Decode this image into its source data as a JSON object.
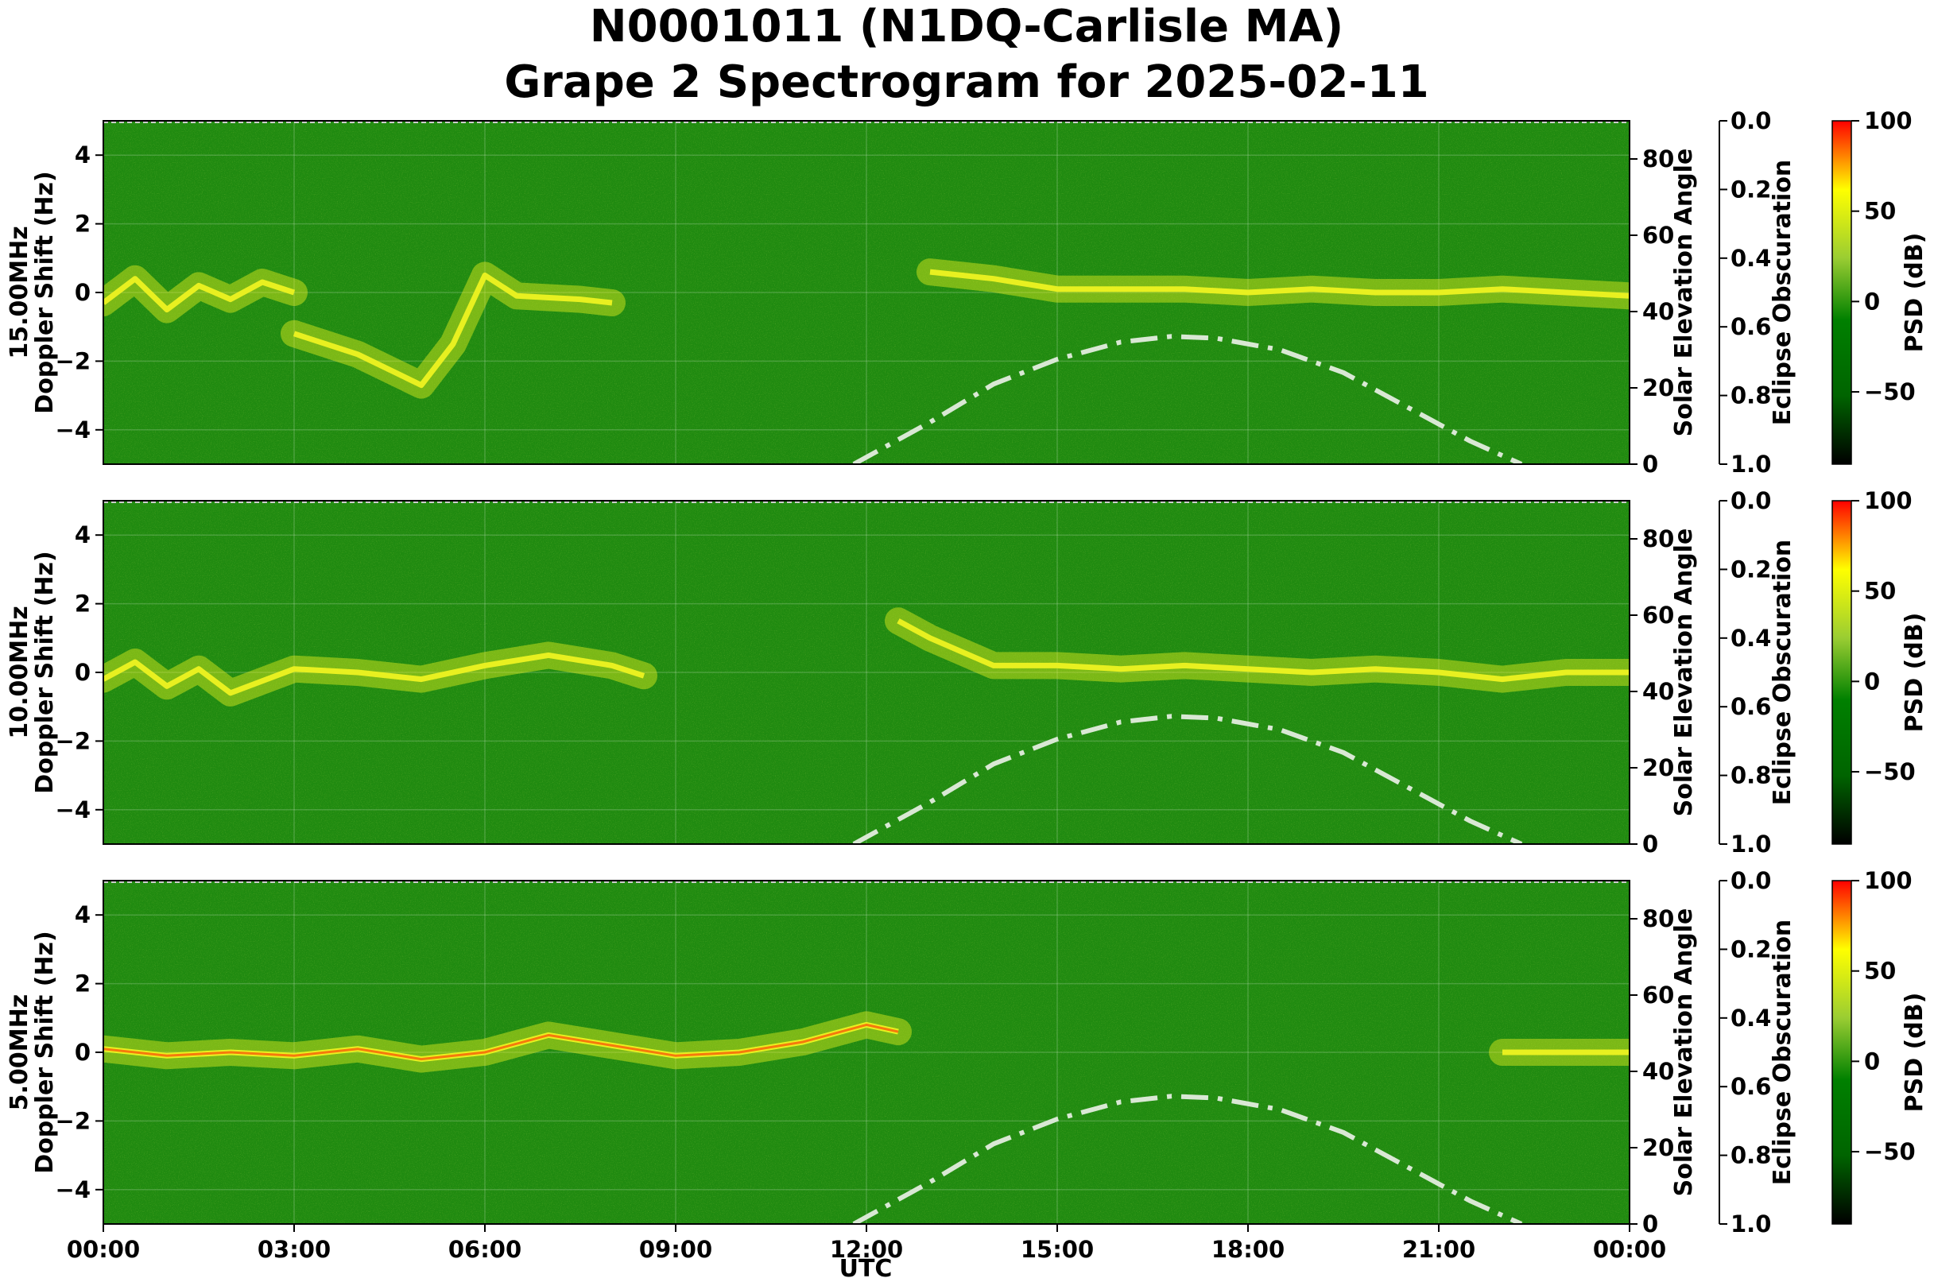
{
  "figure": {
    "title_line1": "N0001011 (N1DQ-Carlisle MA)",
    "title_line2": "Grape 2 Spectrogram for 2025-02-11",
    "xlabel": "UTC",
    "x_tick_labels": [
      "00:00",
      "03:00",
      "06:00",
      "09:00",
      "12:00",
      "15:00",
      "18:00",
      "21:00",
      "00:00"
    ]
  },
  "colors": {
    "background_green": "#1f8a10",
    "signal_yellow": "#e8f020",
    "peak_red": "#ff2a00",
    "elevation_curve": "#d9e8d4",
    "colorbar_stops": [
      "#000000",
      "#006400",
      "#008000",
      "#9acd32",
      "#ffff00",
      "#ff0000"
    ]
  },
  "chart_data": [
    {
      "type": "heatmap",
      "frequency_label": "15.00MHz",
      "ylabel": "Doppler Shift (Hz)",
      "ylim": [
        -5,
        5
      ],
      "y_ticks": [
        4,
        2,
        0,
        -2,
        -4
      ],
      "x_range_hours": [
        0,
        24
      ],
      "right_axis1": {
        "label": "Solar Elevation Angle",
        "ylim": [
          0,
          90
        ],
        "ticks": [
          0,
          20,
          40,
          60,
          80
        ]
      },
      "right_axis2": {
        "label": "Eclipse Obscuration",
        "ylim": [
          1.0,
          0.0
        ],
        "tick_labels": [
          "0.0",
          "0.2",
          "0.4",
          "0.6",
          "0.8",
          "1.0"
        ]
      },
      "colorbar": {
        "label": "PSD (dB)",
        "range": [
          -90,
          100
        ],
        "ticks": [
          100,
          50,
          0,
          -50
        ]
      },
      "solar_elevation": {
        "hours": [
          11.8,
          13,
          14,
          15,
          16,
          16.8,
          17.5,
          18.5,
          19.5,
          20.5,
          21.5,
          22.3
        ],
        "values": [
          0,
          11,
          21,
          27.5,
          32,
          33.5,
          33,
          30,
          24,
          15,
          6,
          0
        ]
      },
      "doppler_trace": [
        {
          "hours": [
            0,
            0.5,
            1,
            1.5,
            2,
            2.5,
            3
          ],
          "values": [
            -0.3,
            0.4,
            -0.5,
            0.2,
            -0.2,
            0.3,
            0.0
          ]
        },
        {
          "hours": [
            3,
            4,
            5,
            5.5,
            6,
            6.5,
            7.5,
            8
          ],
          "values": [
            -1.2,
            -1.8,
            -2.7,
            -1.5,
            0.5,
            -0.1,
            -0.2,
            -0.3
          ]
        },
        {
          "hours": [
            13,
            14,
            15,
            16,
            17,
            18,
            19,
            20,
            21,
            22,
            23,
            24
          ],
          "values": [
            0.6,
            0.4,
            0.1,
            0.1,
            0.1,
            0.0,
            0.1,
            0.0,
            0.0,
            0.1,
            0.0,
            -0.1
          ]
        }
      ]
    },
    {
      "type": "heatmap",
      "frequency_label": "10.00MHz",
      "ylabel": "Doppler Shift (Hz)",
      "ylim": [
        -5,
        5
      ],
      "y_ticks": [
        4,
        2,
        0,
        -2,
        -4
      ],
      "x_range_hours": [
        0,
        24
      ],
      "right_axis1": {
        "label": "Solar Elevation Angle",
        "ylim": [
          0,
          90
        ],
        "ticks": [
          0,
          20,
          40,
          60,
          80
        ]
      },
      "right_axis2": {
        "label": "Eclipse Obscuration",
        "ylim": [
          1.0,
          0.0
        ],
        "tick_labels": [
          "0.0",
          "0.2",
          "0.4",
          "0.6",
          "0.8",
          "1.0"
        ]
      },
      "colorbar": {
        "label": "PSD (dB)",
        "range": [
          -90,
          100
        ],
        "ticks": [
          100,
          50,
          0,
          -50
        ]
      },
      "solar_elevation": {
        "hours": [
          11.8,
          13,
          14,
          15,
          16,
          16.8,
          17.5,
          18.5,
          19.5,
          20.5,
          21.5,
          22.3
        ],
        "values": [
          0,
          11,
          21,
          27.5,
          32,
          33.5,
          33,
          30,
          24,
          15,
          6,
          0
        ]
      },
      "doppler_trace": [
        {
          "hours": [
            0,
            0.5,
            1,
            1.5,
            2,
            3,
            4,
            5,
            6,
            7,
            8,
            8.5
          ],
          "values": [
            -0.2,
            0.3,
            -0.4,
            0.1,
            -0.6,
            0.1,
            0.0,
            -0.2,
            0.2,
            0.5,
            0.2,
            -0.1
          ]
        },
        {
          "hours": [
            12.5,
            13,
            14,
            15,
            16,
            17,
            18,
            19,
            20,
            21,
            22,
            23,
            24
          ],
          "values": [
            1.5,
            1.0,
            0.2,
            0.2,
            0.1,
            0.2,
            0.1,
            0.0,
            0.1,
            0.0,
            -0.2,
            0.0,
            0.0
          ]
        }
      ]
    },
    {
      "type": "heatmap",
      "frequency_label": "5.00MHz",
      "ylabel": "Doppler Shift (Hz)",
      "ylim": [
        -5,
        5
      ],
      "y_ticks": [
        4,
        2,
        0,
        -2,
        -4
      ],
      "x_range_hours": [
        0,
        24
      ],
      "right_axis1": {
        "label": "Solar Elevation Angle",
        "ylim": [
          0,
          90
        ],
        "ticks": [
          0,
          20,
          40,
          60,
          80
        ]
      },
      "right_axis2": {
        "label": "Eclipse Obscuration",
        "ylim": [
          1.0,
          0.0
        ],
        "tick_labels": [
          "0.0",
          "0.2",
          "0.4",
          "0.6",
          "0.8",
          "1.0"
        ]
      },
      "colorbar": {
        "label": "PSD (dB)",
        "range": [
          -90,
          100
        ],
        "ticks": [
          100,
          50,
          0,
          -50
        ]
      },
      "solar_elevation": {
        "hours": [
          11.8,
          13,
          14,
          15,
          16,
          16.8,
          17.5,
          18.5,
          19.5,
          20.5,
          21.5,
          22.3
        ],
        "values": [
          0,
          11,
          21,
          27.5,
          32,
          33.5,
          33,
          30,
          24,
          15,
          6,
          0
        ]
      },
      "doppler_trace": [
        {
          "hours": [
            0,
            1,
            2,
            3,
            4,
            5,
            6,
            7,
            8,
            9,
            10,
            11,
            12,
            12.5
          ],
          "values": [
            0.1,
            -0.1,
            0.0,
            -0.1,
            0.1,
            -0.2,
            0.0,
            0.5,
            0.2,
            -0.1,
            0.0,
            0.3,
            0.8,
            0.6
          ]
        },
        {
          "hours": [
            22,
            23,
            24
          ],
          "values": [
            0.0,
            0.0,
            0.0
          ]
        }
      ]
    }
  ]
}
